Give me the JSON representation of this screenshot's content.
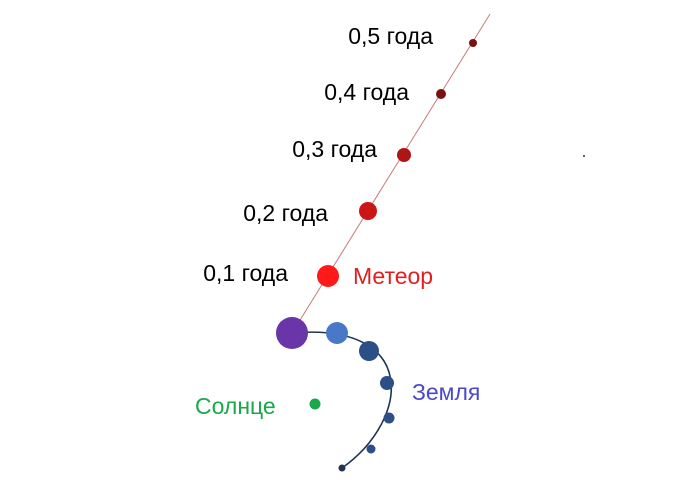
{
  "meteor": {
    "label": "Метеор",
    "label_color": "#e02020",
    "line_color": "#c87a7a",
    "time_labels": [
      "0,5 года",
      "0,4 года",
      "0,3 года",
      "0,2 года",
      "0,1 года"
    ],
    "marker_colors": [
      "#7a1010",
      "#7a1010",
      "#b01515",
      "#cc1515",
      "#ff1a1a"
    ]
  },
  "earth": {
    "label": "Земля",
    "label_color": "#4a4ac8",
    "orbit_color": "#1f3553",
    "marker_colors": [
      "#4a78c8",
      "#2b4f86",
      "#2b4f86",
      "#2b4f86",
      "#2b4f86",
      "#1f3553"
    ]
  },
  "sun": {
    "label": "Солнце",
    "color": "#1aa84a"
  },
  "collision": {
    "color": "#6a35a8"
  }
}
